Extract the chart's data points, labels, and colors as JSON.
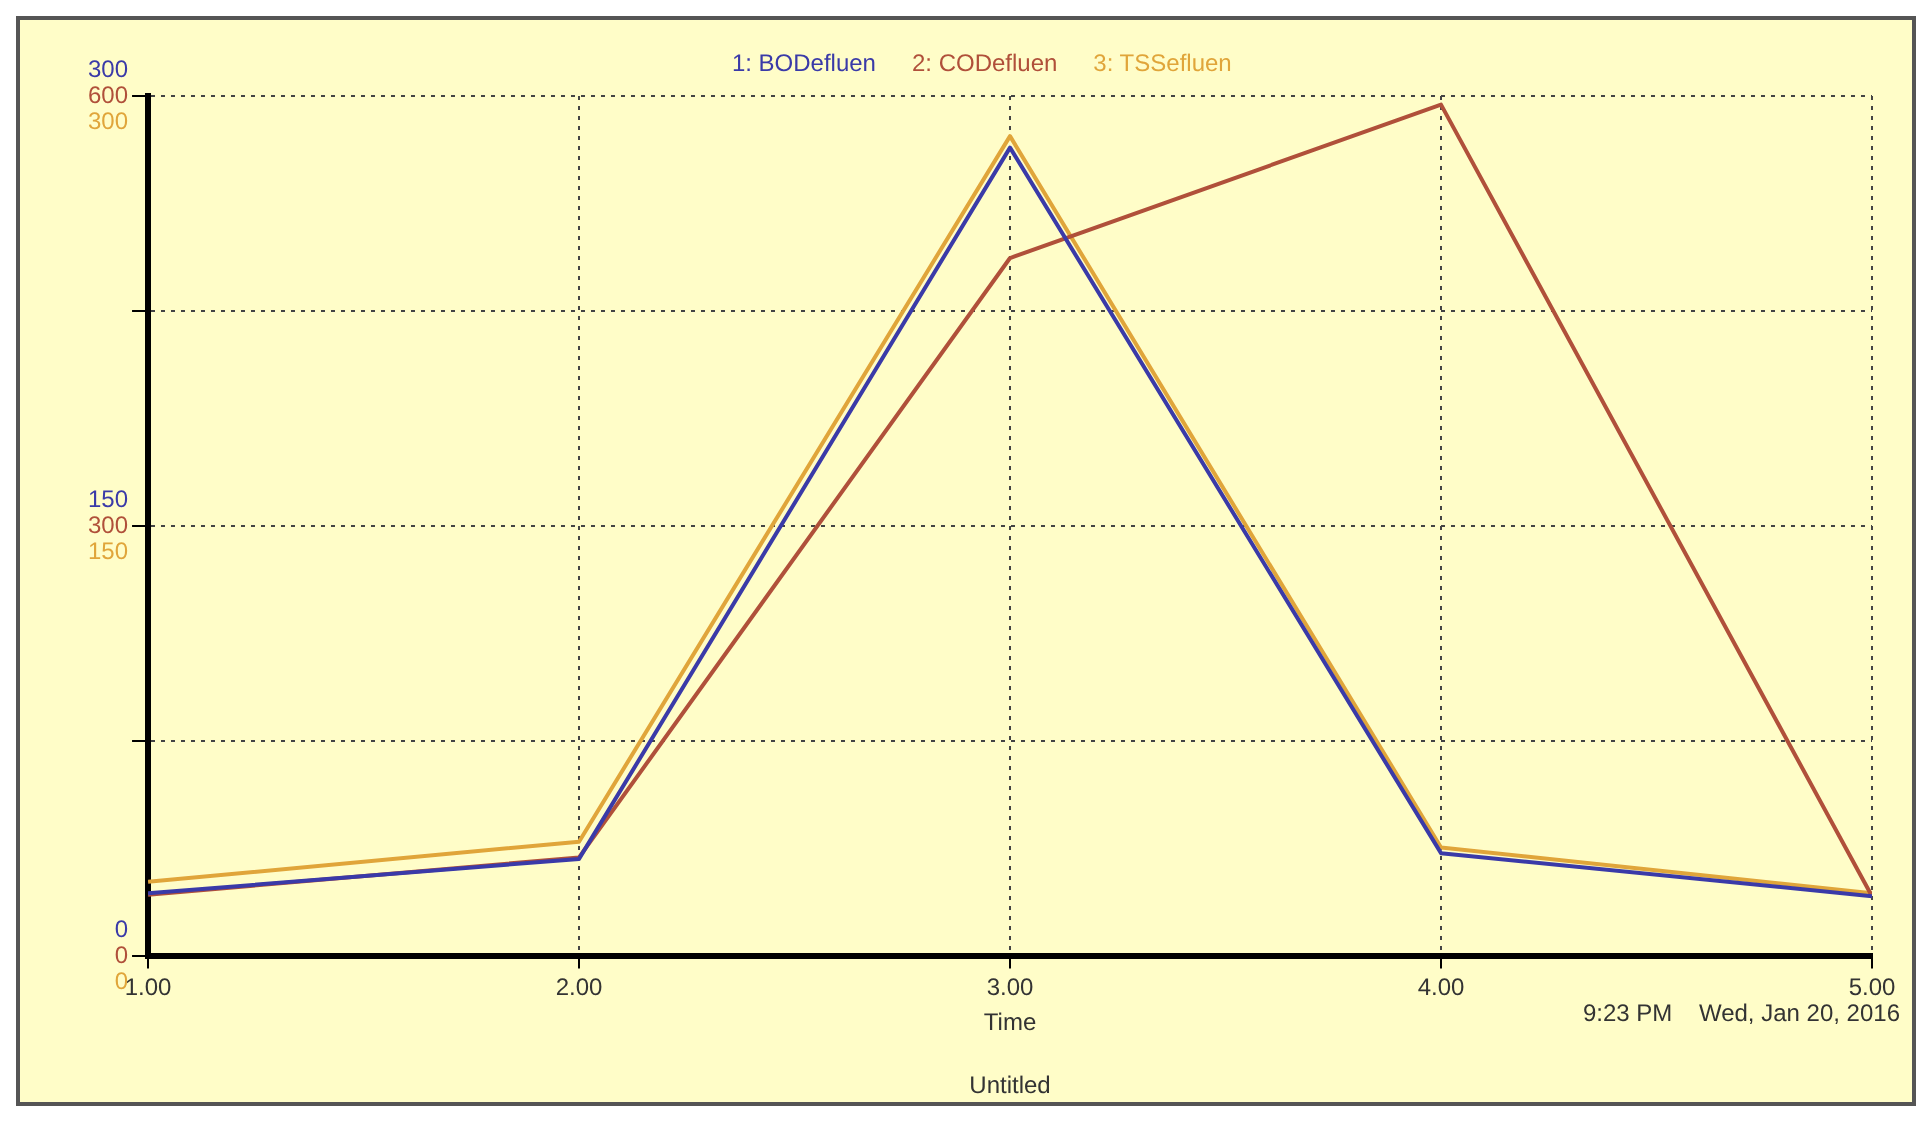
{
  "chart_data": {
    "type": "line",
    "x": [
      1,
      2,
      3,
      4,
      5
    ],
    "xlim": [
      1,
      5
    ],
    "xticks": [
      {
        "value": 1,
        "label": "1.00"
      },
      {
        "value": 2,
        "label": "2.00"
      },
      {
        "value": 3,
        "label": "3.00"
      },
      {
        "value": 4,
        "label": "4.00"
      },
      {
        "value": 5,
        "label": "5.00"
      }
    ],
    "xlabel": "Time",
    "ylim": [
      0,
      300
    ],
    "yticks": [
      0,
      {
        "value": 75,
        "label": null
      },
      150,
      {
        "value": 225,
        "label": null
      },
      300
    ],
    "y2lim": [
      0,
      600
    ],
    "y2ticks": [
      0,
      300,
      600
    ],
    "y3lim": [
      0,
      300
    ],
    "y3ticks": [
      0,
      150,
      300
    ],
    "series": [
      {
        "name": "1: BODefluen",
        "color": "#3a3aa8",
        "values": [
          22,
          34,
          282,
          36,
          21
        ]
      },
      {
        "name": "2: CODefluen",
        "color": "#b0503a",
        "axis": "y2",
        "values": [
          43,
          69,
          487,
          594,
          42
        ]
      },
      {
        "name": "3: TSSefluen",
        "color": "#e0a53a",
        "axis": "y3",
        "values": [
          26,
          40,
          286,
          38,
          22
        ]
      }
    ],
    "grid": true,
    "legend": "top",
    "marker": "none",
    "line_style": "solid",
    "annotations": [
      "9:23 PM    Wed, Jan 20, 2016",
      "Untitled"
    ]
  }
}
